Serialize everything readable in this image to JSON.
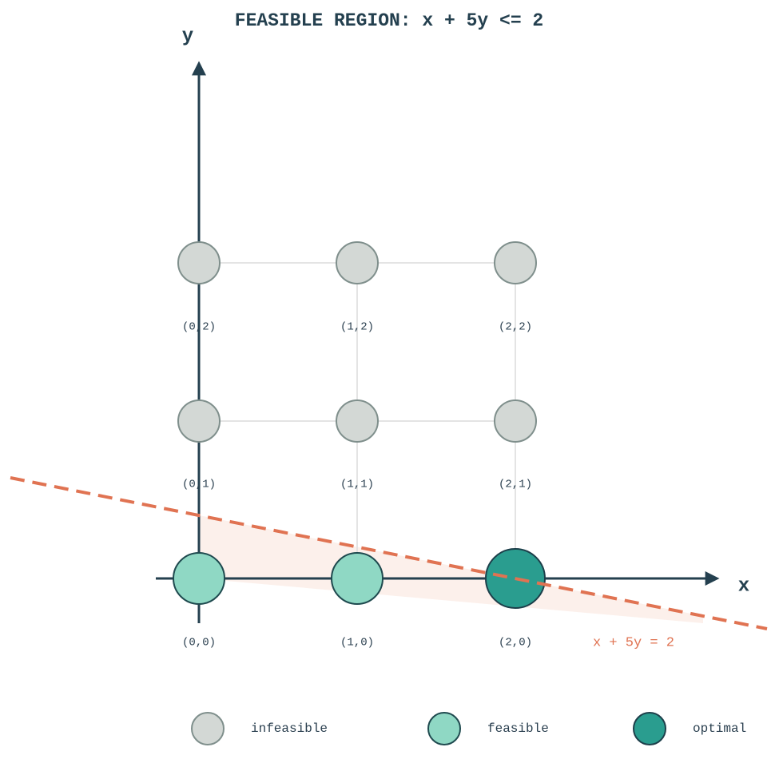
{
  "header": {
    "title": "FEASIBLE REGION: x + 5y <= 2"
  },
  "axes": {
    "x": "x",
    "y": "y"
  },
  "constraint": {
    "label": "x + 5y = 2"
  },
  "points": {
    "rows": [
      [
        "(0,2)",
        "(1,2)",
        "(2,2)"
      ],
      [
        "(0,1)",
        "(1,1)",
        "(2,1)"
      ],
      [
        "(0,0)",
        "(1,0)",
        "(2,0)"
      ]
    ]
  },
  "legend": {
    "items": [
      "infeasible",
      "feasible",
      "optimal"
    ]
  }
}
